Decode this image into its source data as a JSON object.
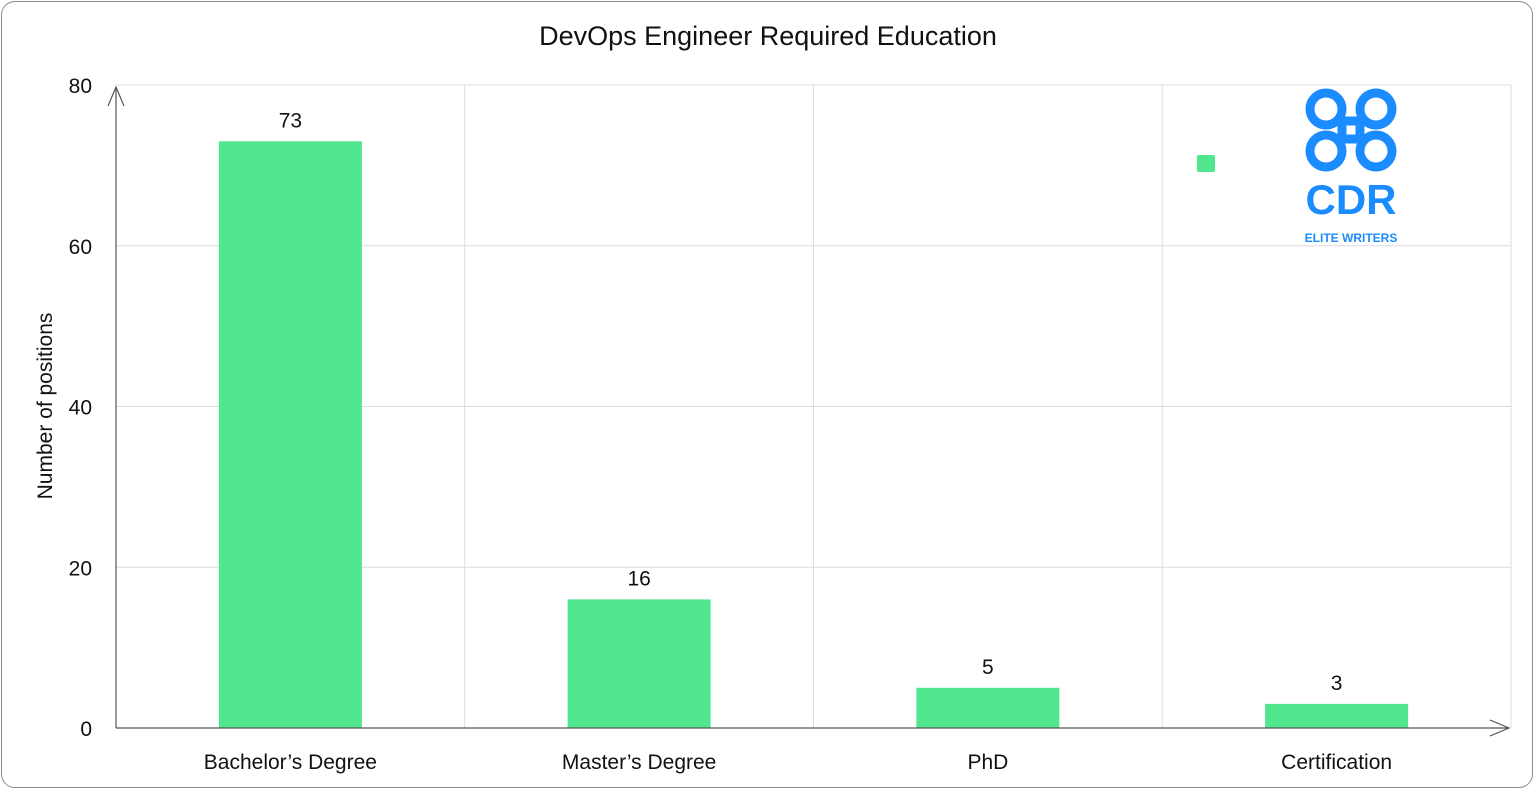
{
  "chart_data": {
    "type": "bar",
    "title": "DevOps Engineer Required Education",
    "xlabel": "",
    "ylabel": "Number of positions",
    "categories": [
      "Bachelor’s Degree",
      "Master’s Degree",
      "PhD",
      "Certification"
    ],
    "values": [
      73,
      16,
      5,
      3
    ],
    "ylim": [
      0,
      80
    ],
    "yticks": [
      0,
      20,
      40,
      60,
      80
    ],
    "grid": true,
    "legend": {
      "position": "top-right",
      "entries": [
        {
          "name": "",
          "color": "#50e68e"
        }
      ]
    },
    "bar_color": "#50e68e"
  },
  "logo": {
    "text": "CDR",
    "subtext": "ELITE WRITERS",
    "color": "#1a8cff"
  }
}
